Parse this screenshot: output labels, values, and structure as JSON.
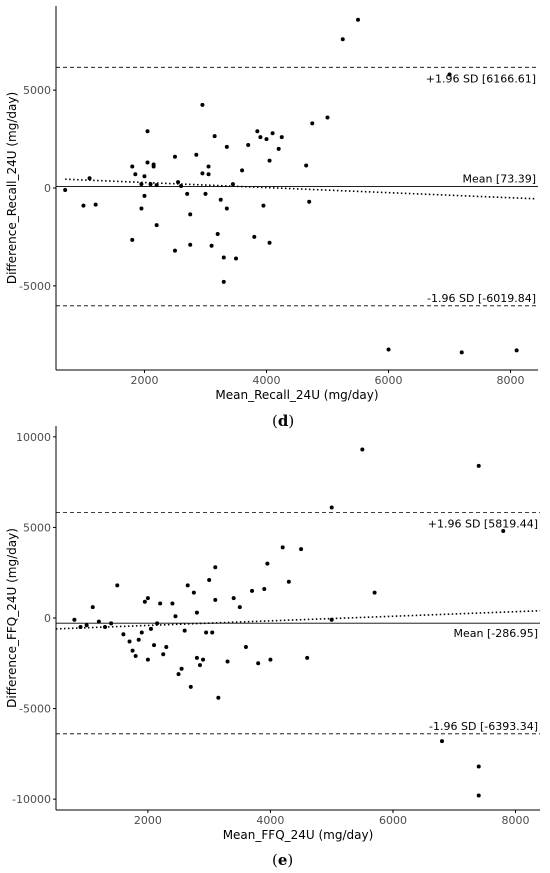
{
  "chart_data": [
    {
      "type": "scatter",
      "panel_label": "d",
      "xlabel": "Mean_Recall_24U (mg/day)",
      "ylabel": "Difference_Recall_24U (mg/day)",
      "xlim": [
        550,
        8450
      ],
      "ylim": [
        -9300,
        9300
      ],
      "xticks": [
        2000,
        4000,
        6000,
        8000
      ],
      "yticks": [
        -5000,
        0,
        5000
      ],
      "grid": false,
      "mean_line": {
        "value": 73.39,
        "label": "Mean [73.39]"
      },
      "upper_loa": {
        "value": 6166.61,
        "label": "+1.96 SD [6166.61]"
      },
      "lower_loa": {
        "value": -6019.84,
        "label": "-1.96 SD [-6019.84]"
      },
      "trend_line": {
        "x": [
          700,
          8400
        ],
        "y": [
          450,
          -550
        ]
      },
      "points": [
        [
          700,
          -100
        ],
        [
          1000,
          -900
        ],
        [
          1100,
          500
        ],
        [
          1200,
          -850
        ],
        [
          1800,
          -2650
        ],
        [
          1800,
          1100
        ],
        [
          1850,
          700
        ],
        [
          1950,
          200
        ],
        [
          1950,
          -1050
        ],
        [
          2000,
          -400
        ],
        [
          2000,
          600
        ],
        [
          2050,
          1300
        ],
        [
          2050,
          2900
        ],
        [
          2100,
          200
        ],
        [
          2150,
          1200
        ],
        [
          2150,
          1100
        ],
        [
          2200,
          -1900
        ],
        [
          2200,
          150
        ],
        [
          2500,
          -3200
        ],
        [
          2550,
          300
        ],
        [
          2500,
          1600
        ],
        [
          2600,
          100
        ],
        [
          2700,
          -300
        ],
        [
          2750,
          -1350
        ],
        [
          2750,
          -2900
        ],
        [
          2850,
          1700
        ],
        [
          2950,
          4250
        ],
        [
          2950,
          750
        ],
        [
          3000,
          -300
        ],
        [
          3050,
          1100
        ],
        [
          3050,
          700
        ],
        [
          3100,
          -2950
        ],
        [
          3150,
          2650
        ],
        [
          3200,
          -2350
        ],
        [
          3250,
          -600
        ],
        [
          3300,
          -3550
        ],
        [
          3300,
          -4800
        ],
        [
          3350,
          2100
        ],
        [
          3350,
          -1050
        ],
        [
          3450,
          200
        ],
        [
          3500,
          -3600
        ],
        [
          3600,
          900
        ],
        [
          3700,
          2200
        ],
        [
          3800,
          -2500
        ],
        [
          3850,
          2900
        ],
        [
          3900,
          2600
        ],
        [
          3950,
          -900
        ],
        [
          4000,
          2500
        ],
        [
          4050,
          -2800
        ],
        [
          4050,
          1400
        ],
        [
          4100,
          2800
        ],
        [
          4200,
          2000
        ],
        [
          4250,
          2600
        ],
        [
          4650,
          1150
        ],
        [
          4700,
          -700
        ],
        [
          4750,
          3300
        ],
        [
          5000,
          3600
        ],
        [
          5250,
          7600
        ],
        [
          5500,
          8600
        ],
        [
          7000,
          5800
        ],
        [
          6000,
          -8250
        ],
        [
          7200,
          -8400
        ],
        [
          8100,
          -8300
        ]
      ]
    },
    {
      "type": "scatter",
      "panel_label": "e",
      "xlabel": "Mean_FFQ_24U (mg/day)",
      "ylabel": "Difference_FFQ_24U (mg/day)",
      "xlim": [
        500,
        8400
      ],
      "ylim": [
        -10600,
        10600
      ],
      "xticks": [
        2000,
        4000,
        6000,
        8000
      ],
      "yticks": [
        -10000,
        -5000,
        0,
        5000,
        10000
      ],
      "grid": false,
      "mean_line": {
        "value": -286.95,
        "label": "Mean [-286.95]"
      },
      "upper_loa": {
        "value": 5819.44,
        "label": "+1.96 SD [5819.44]"
      },
      "lower_loa": {
        "value": -6393.34,
        "label": "-1.96 SD [-6393.34]"
      },
      "trend_line": {
        "x": [
          500,
          8400
        ],
        "y": [
          -600,
          400
        ]
      },
      "points": [
        [
          800,
          -100
        ],
        [
          900,
          -500
        ],
        [
          1000,
          -400
        ],
        [
          1100,
          600
        ],
        [
          1200,
          -200
        ],
        [
          1300,
          -500
        ],
        [
          1400,
          -300
        ],
        [
          1500,
          1800
        ],
        [
          1600,
          -900
        ],
        [
          1700,
          -1300
        ],
        [
          1750,
          -1800
        ],
        [
          1800,
          -2100
        ],
        [
          1850,
          -1200
        ],
        [
          1900,
          -800
        ],
        [
          1950,
          900
        ],
        [
          2000,
          -2300
        ],
        [
          2000,
          1100
        ],
        [
          2050,
          -600
        ],
        [
          2100,
          -1500
        ],
        [
          2150,
          -300
        ],
        [
          2200,
          800
        ],
        [
          2250,
          -2000
        ],
        [
          2300,
          -1600
        ],
        [
          2400,
          800
        ],
        [
          2450,
          100
        ],
        [
          2500,
          -3100
        ],
        [
          2550,
          -2800
        ],
        [
          2600,
          -700
        ],
        [
          2650,
          1800
        ],
        [
          2700,
          -3800
        ],
        [
          2750,
          1400
        ],
        [
          2800,
          -2200
        ],
        [
          2800,
          300
        ],
        [
          2850,
          -2600
        ],
        [
          2900,
          -2300
        ],
        [
          2950,
          -800
        ],
        [
          3000,
          2100
        ],
        [
          3050,
          -800
        ],
        [
          3100,
          2800
        ],
        [
          3100,
          1000
        ],
        [
          3150,
          -4400
        ],
        [
          3300,
          -2400
        ],
        [
          3400,
          1100
        ],
        [
          3500,
          600
        ],
        [
          3600,
          -1600
        ],
        [
          3700,
          1500
        ],
        [
          3800,
          -2500
        ],
        [
          3900,
          1600
        ],
        [
          3950,
          3000
        ],
        [
          4000,
          -2300
        ],
        [
          4200,
          3900
        ],
        [
          4300,
          2000
        ],
        [
          4500,
          3800
        ],
        [
          4600,
          -2200
        ],
        [
          5000,
          6100
        ],
        [
          5000,
          -100
        ],
        [
          5500,
          9300
        ],
        [
          5700,
          1400
        ],
        [
          6800,
          -6800
        ],
        [
          7400,
          -8200
        ],
        [
          7400,
          -9800
        ],
        [
          7400,
          8400
        ],
        [
          7800,
          4800
        ]
      ]
    }
  ]
}
